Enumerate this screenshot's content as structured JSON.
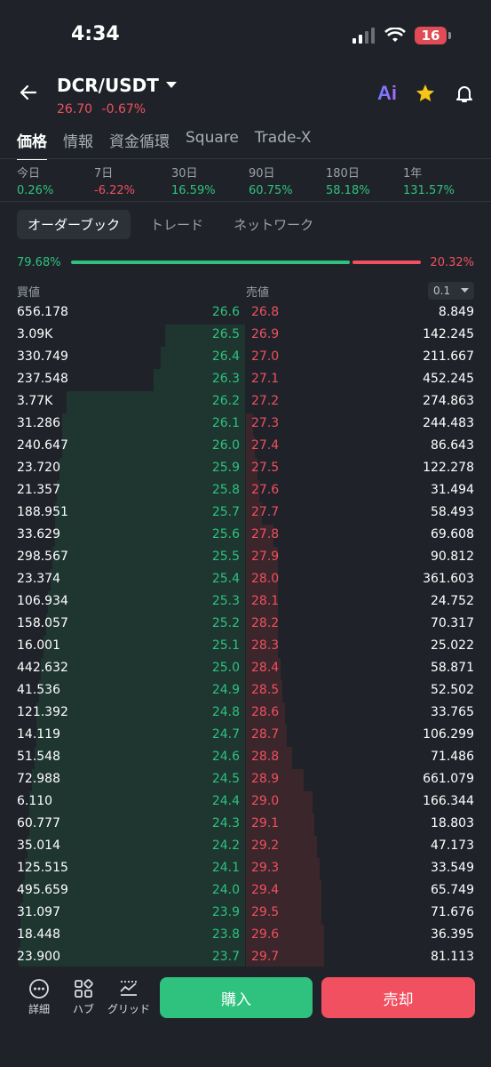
{
  "status": {
    "time": "4:34",
    "battery": "16"
  },
  "header": {
    "pair": "DCR/USDT",
    "price": "26.70",
    "change": "-0.67%"
  },
  "tabs": [
    "価格",
    "情報",
    "資金循環",
    "Square",
    "Trade-X"
  ],
  "performance": [
    {
      "label": "今日",
      "value": "0.26%",
      "dir": "up"
    },
    {
      "label": "7日",
      "value": "-6.22%",
      "dir": "down"
    },
    {
      "label": "30日",
      "value": "16.59%",
      "dir": "up"
    },
    {
      "label": "90日",
      "value": "60.75%",
      "dir": "up"
    },
    {
      "label": "180日",
      "value": "58.18%",
      "dir": "up"
    },
    {
      "label": "1年",
      "value": "131.57%",
      "dir": "up"
    }
  ],
  "subtabs": [
    "オーダーブック",
    "トレード",
    "ネットワーク"
  ],
  "ratio": {
    "buy": "79.68%",
    "sell": "20.32%",
    "buy_fraction": 0.7968
  },
  "columns": {
    "bid": "買値",
    "ask": "売値",
    "precision": "0.1"
  },
  "orderbook": [
    {
      "bq": "656.178",
      "bp": "26.6",
      "ap": "26.8",
      "aq": "8.849",
      "bd": 0.0,
      "ad": 0.0
    },
    {
      "bq": "3.09K",
      "bp": "26.5",
      "ap": "26.9",
      "aq": "142.245",
      "bd": 0.35,
      "ad": 0.0
    },
    {
      "bq": "330.749",
      "bp": "26.4",
      "ap": "27.0",
      "aq": "211.667",
      "bd": 0.37,
      "ad": 0.0
    },
    {
      "bq": "237.548",
      "bp": "26.3",
      "ap": "27.1",
      "aq": "452.245",
      "bd": 0.4,
      "ad": 0.0
    },
    {
      "bq": "3.77K",
      "bp": "26.2",
      "ap": "27.2",
      "aq": "274.863",
      "bd": 0.78,
      "ad": 0.0
    },
    {
      "bq": "31.286",
      "bp": "26.1",
      "ap": "27.3",
      "aq": "244.483",
      "bd": 0.8,
      "ad": 0.03
    },
    {
      "bq": "240.647",
      "bp": "26.0",
      "ap": "27.4",
      "aq": "86.643",
      "bd": 0.8,
      "ad": 0.04
    },
    {
      "bq": "23.720",
      "bp": "25.9",
      "ap": "27.5",
      "aq": "122.278",
      "bd": 0.81,
      "ad": 0.05
    },
    {
      "bq": "21.357",
      "bp": "25.8",
      "ap": "27.6",
      "aq": "31.494",
      "bd": 0.82,
      "ad": 0.06
    },
    {
      "bq": "188.951",
      "bp": "25.7",
      "ap": "27.7",
      "aq": "58.493",
      "bd": 0.83,
      "ad": 0.07
    },
    {
      "bq": "33.629",
      "bp": "25.6",
      "ap": "27.8",
      "aq": "69.608",
      "bd": 0.83,
      "ad": 0.12
    },
    {
      "bq": "298.567",
      "bp": "25.5",
      "ap": "27.9",
      "aq": "90.812",
      "bd": 0.84,
      "ad": 0.14
    },
    {
      "bq": "23.374",
      "bp": "25.4",
      "ap": "28.0",
      "aq": "361.603",
      "bd": 0.85,
      "ad": 0.14
    },
    {
      "bq": "106.934",
      "bp": "25.3",
      "ap": "28.1",
      "aq": "24.752",
      "bd": 0.86,
      "ad": 0.14
    },
    {
      "bq": "158.057",
      "bp": "25.2",
      "ap": "28.2",
      "aq": "70.317",
      "bd": 0.87,
      "ad": 0.14
    },
    {
      "bq": "16.001",
      "bp": "25.1",
      "ap": "28.3",
      "aq": "25.022",
      "bd": 0.88,
      "ad": 0.14
    },
    {
      "bq": "442.632",
      "bp": "25.0",
      "ap": "28.4",
      "aq": "58.871",
      "bd": 0.89,
      "ad": 0.15
    },
    {
      "bq": "41.536",
      "bp": "24.9",
      "ap": "28.5",
      "aq": "52.502",
      "bd": 0.9,
      "ad": 0.16
    },
    {
      "bq": "121.392",
      "bp": "24.8",
      "ap": "28.6",
      "aq": "33.765",
      "bd": 0.91,
      "ad": 0.17
    },
    {
      "bq": "14.119",
      "bp": "24.7",
      "ap": "28.7",
      "aq": "106.299",
      "bd": 0.91,
      "ad": 0.18
    },
    {
      "bq": "51.548",
      "bp": "24.6",
      "ap": "28.8",
      "aq": "71.486",
      "bd": 0.92,
      "ad": 0.2
    },
    {
      "bq": "72.988",
      "bp": "24.5",
      "ap": "28.9",
      "aq": "661.079",
      "bd": 0.93,
      "ad": 0.25
    },
    {
      "bq": "6.110",
      "bp": "24.4",
      "ap": "29.0",
      "aq": "166.344",
      "bd": 0.94,
      "ad": 0.29
    },
    {
      "bq": "60.777",
      "bp": "24.3",
      "ap": "29.1",
      "aq": "18.803",
      "bd": 0.94,
      "ad": 0.3
    },
    {
      "bq": "35.014",
      "bp": "24.2",
      "ap": "29.2",
      "aq": "47.173",
      "bd": 0.95,
      "ad": 0.31
    },
    {
      "bq": "125.515",
      "bp": "24.1",
      "ap": "29.3",
      "aq": "33.549",
      "bd": 0.96,
      "ad": 0.32
    },
    {
      "bq": "495.659",
      "bp": "24.0",
      "ap": "29.4",
      "aq": "65.749",
      "bd": 0.97,
      "ad": 0.33
    },
    {
      "bq": "31.097",
      "bp": "23.9",
      "ap": "29.5",
      "aq": "71.676",
      "bd": 0.98,
      "ad": 0.33
    },
    {
      "bq": "18.448",
      "bp": "23.8",
      "ap": "29.6",
      "aq": "36.395",
      "bd": 0.98,
      "ad": 0.34
    },
    {
      "bq": "23.900",
      "bp": "23.7",
      "ap": "29.7",
      "aq": "81.113",
      "bd": 0.99,
      "ad": 0.34
    }
  ],
  "bottom": {
    "details": "詳細",
    "hub": "ハブ",
    "grid": "グリッド",
    "buy": "購入",
    "sell": "売却"
  }
}
